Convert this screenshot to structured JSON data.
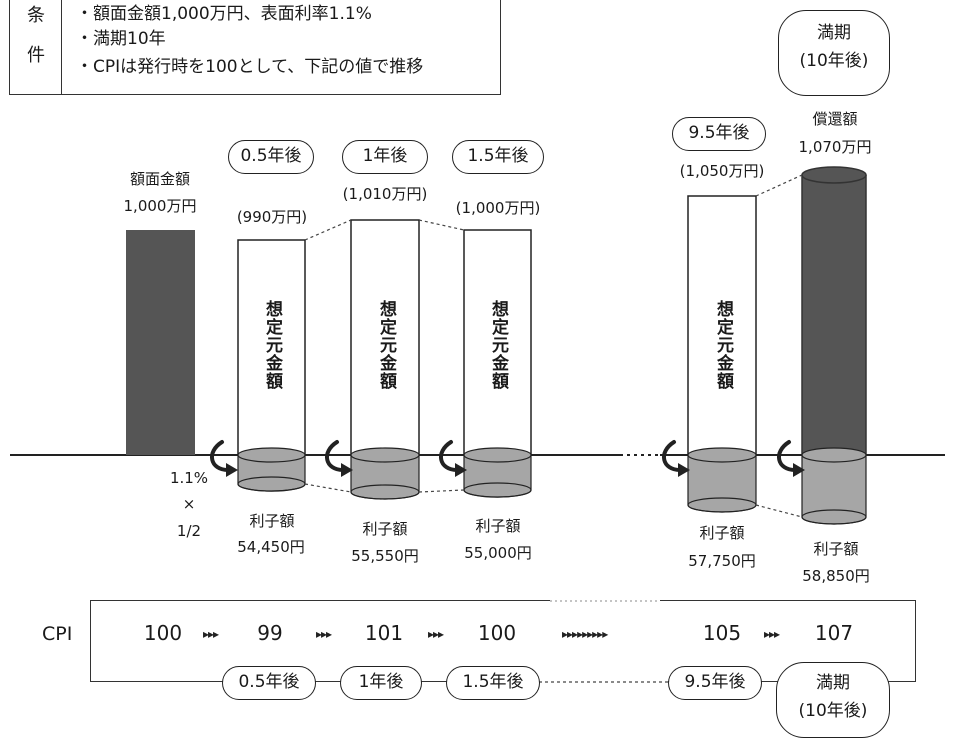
{
  "conditions": {
    "header": [
      "条",
      "件"
    ],
    "lines": [
      "・額面金額1,000万円、表面利率1.1%",
      "・満期10年",
      "・CPIは発行時を100として、下記の値で推移"
    ]
  },
  "face_value": {
    "label_line1": "額面金額",
    "label_line2": "1,000万円"
  },
  "periods": [
    {
      "label": "0.5年後",
      "principal": "(990万円)",
      "principal_label": "想定元金額",
      "interest_label": "利子額",
      "interest": "54,450円"
    },
    {
      "label": "1年後",
      "principal": "(1,010万円)",
      "principal_label": "想定元金額",
      "interest_label": "利子額",
      "interest": "55,550円"
    },
    {
      "label": "1.5年後",
      "principal": "(1,000万円)",
      "principal_label": "想定元金額",
      "interest_label": "利子額",
      "interest": "55,000円"
    },
    {
      "label": "9.5年後",
      "principal": "(1,050万円)",
      "principal_label": "想定元金額",
      "interest_label": "利子額",
      "interest": "57,750円"
    }
  ],
  "maturity": {
    "label_line1": "満期",
    "label_line2": "(10年後)",
    "redemption_label": "償還額",
    "redemption_value": "1,070万円",
    "interest_label": "利子額",
    "interest": "58,850円"
  },
  "rate_note": {
    "rate": "1.1%",
    "times": "×",
    "half": "1/2"
  },
  "cpi": {
    "label": "CPI",
    "values": [
      "100",
      "99",
      "101",
      "100",
      "105",
      "107"
    ],
    "arrow": "▸▸▸",
    "long_arrow": "▸▸▸▸▸▸▸▸▸",
    "bottom_labels": [
      "0.5年後",
      "1年後",
      "1.5年後",
      "9.5年後"
    ],
    "maturity_line1": "満期",
    "maturity_line2": "(10年後)"
  },
  "colors": {
    "dark_bar": "#555555",
    "interest_fill": "#a6a6a6",
    "outline": "#222222"
  }
}
